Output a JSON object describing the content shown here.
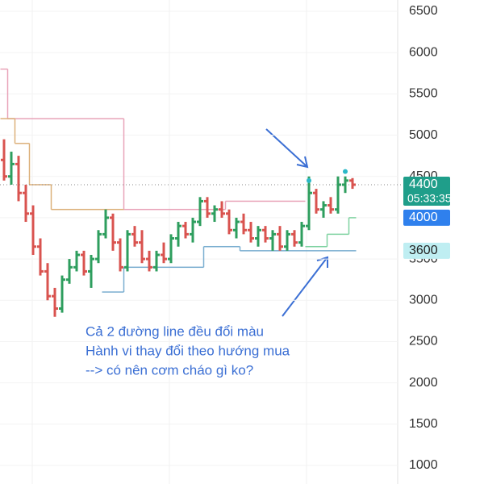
{
  "chart_data": {
    "type": "ohlc",
    "up_color": "#2e9e5e",
    "down_color": "#d9534f",
    "open": [
      4700,
      4500,
      4650,
      4300,
      4050,
      3650,
      3350,
      3050,
      2900,
      3250,
      3400,
      3550,
      3350,
      3500,
      3800,
      4000,
      3700,
      3400,
      3800,
      3700,
      3500,
      3400,
      3550,
      3500,
      3750,
      3900,
      3800,
      3950,
      4200,
      4050,
      4100,
      4050,
      3850,
      3950,
      3850,
      3750,
      3850,
      3750,
      3800,
      3650,
      3800,
      3700,
      3900,
      4300,
      4100,
      4150,
      4100,
      4400,
      4450
    ],
    "high": [
      4950,
      4800,
      4750,
      4400,
      4150,
      3750,
      3450,
      3150,
      3300,
      3500,
      3600,
      3600,
      3550,
      3850,
      4100,
      4050,
      3750,
      3850,
      3900,
      3850,
      3600,
      3600,
      3700,
      3800,
      3950,
      3950,
      4000,
      4250,
      4250,
      4150,
      4200,
      4100,
      4000,
      4050,
      3950,
      3900,
      3900,
      3850,
      3900,
      3850,
      3850,
      3950,
      4500,
      4350,
      4200,
      4250,
      4500,
      4500,
      4480
    ],
    "low": [
      4450,
      4400,
      4200,
      3950,
      3550,
      3300,
      3000,
      2800,
      2850,
      3200,
      3350,
      3300,
      3150,
      3450,
      3750,
      3600,
      3350,
      3350,
      3650,
      3450,
      3350,
      3350,
      3450,
      3450,
      3650,
      3750,
      3700,
      3900,
      4000,
      3950,
      4000,
      3800,
      3750,
      3800,
      3700,
      3650,
      3700,
      3600,
      3600,
      3600,
      3650,
      3650,
      3850,
      4050,
      4000,
      4050,
      4050,
      4300,
      4350
    ],
    "close": [
      4500,
      4650,
      4300,
      4050,
      3650,
      3350,
      3050,
      2900,
      3250,
      3400,
      3550,
      3350,
      3500,
      3800,
      4000,
      3700,
      3400,
      3800,
      3700,
      3500,
      3400,
      3550,
      3500,
      3750,
      3900,
      3800,
      3950,
      4200,
      4050,
      4100,
      4050,
      3850,
      3950,
      3850,
      3750,
      3850,
      3750,
      3800,
      3650,
      3800,
      3700,
      3900,
      4300,
      4100,
      4150,
      4100,
      4400,
      4450,
      4400
    ],
    "lines": [
      {
        "color": "#e8a3b8",
        "values": [
          5800,
          5200,
          5200,
          5200,
          5200,
          5200,
          5200,
          5200,
          5200,
          5200,
          5200,
          5200,
          5200,
          5200,
          5200,
          5200,
          5200,
          4100,
          4100,
          4100,
          4100,
          4100,
          4100,
          4100,
          4100,
          4100,
          4100,
          4100,
          4100,
          4100,
          4100,
          4200,
          4200,
          4200,
          4200,
          4200,
          4200,
          4200,
          4200,
          4200,
          4200,
          4200,
          null,
          null,
          null,
          null,
          null,
          null,
          null
        ]
      },
      {
        "color": "#dcb07a",
        "values": [
          5200,
          5200,
          4900,
          4900,
          4400,
          4400,
          4400,
          4100,
          4100,
          4100,
          4100,
          4100,
          4100,
          4100,
          4100,
          4100,
          4100,
          null,
          null,
          null,
          null,
          null,
          null,
          null,
          null,
          null,
          null,
          null,
          null,
          null,
          null,
          null,
          null,
          null,
          null,
          null,
          null,
          null,
          null,
          null,
          null,
          null,
          null,
          null,
          null,
          null,
          null,
          null,
          null
        ]
      },
      {
        "color": "#7aaed0",
        "values": [
          null,
          null,
          null,
          null,
          null,
          null,
          null,
          null,
          null,
          null,
          null,
          null,
          null,
          null,
          3100,
          3100,
          3100,
          3400,
          3400,
          3400,
          3400,
          3400,
          3400,
          3400,
          3400,
          3400,
          3400,
          3400,
          3650,
          3650,
          3650,
          3650,
          3650,
          3600,
          3600,
          3600,
          3600,
          3600,
          3600,
          3600,
          3600,
          3600,
          3600,
          3600,
          3600,
          3600,
          3600,
          3600,
          3600
        ]
      },
      {
        "color": "#7ed2a0",
        "values": [
          null,
          null,
          null,
          null,
          null,
          null,
          null,
          null,
          null,
          null,
          null,
          null,
          null,
          null,
          null,
          null,
          null,
          null,
          null,
          null,
          null,
          null,
          null,
          null,
          null,
          null,
          null,
          null,
          null,
          null,
          null,
          null,
          null,
          null,
          null,
          null,
          null,
          null,
          null,
          null,
          null,
          null,
          3650,
          3650,
          3650,
          3800,
          3800,
          3800,
          4000
        ]
      }
    ],
    "markers": {
      "color": "#2bb8c8",
      "x": [
        42,
        47
      ],
      "values": [
        4450,
        4560
      ]
    },
    "last_price": 4400,
    "price_labels": [
      {
        "value": 4400,
        "sublabel": "05:33:35",
        "color": "#1f9e8a",
        "text_color": "#ffffff"
      },
      {
        "value": 4000,
        "color": "#2f80ed",
        "text_color": "#ffffff"
      },
      {
        "value": 3600,
        "color": "#bfeef2",
        "text_color": "#222222"
      }
    ],
    "ylim": [
      775,
      6637
    ],
    "yticks": [
      1000,
      1500,
      2000,
      2500,
      3000,
      3500,
      4000,
      4500,
      5000,
      5500,
      6000,
      6500
    ],
    "grid": true,
    "annotation": [
      "Cả 2 đường line đều đổi màu",
      "Hành vi thay đổi theo hướng mua",
      "--> có nên cơm cháo gì ko?"
    ]
  }
}
